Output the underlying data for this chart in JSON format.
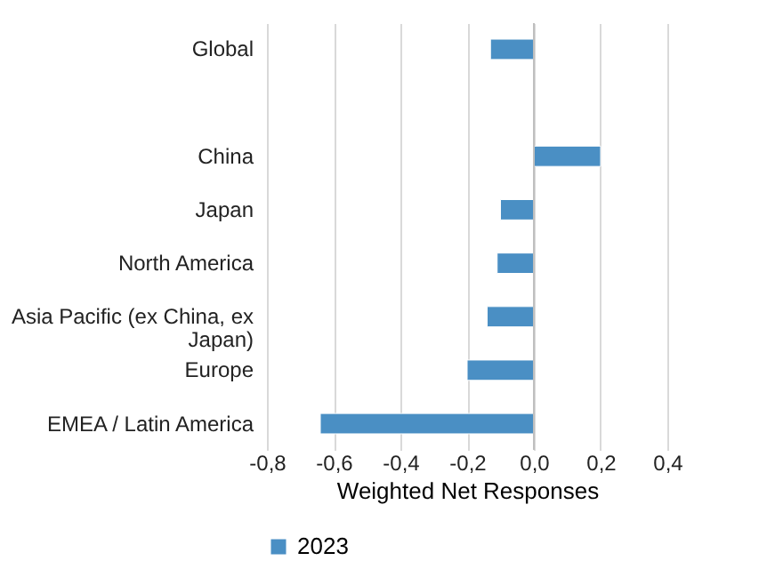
{
  "chart_data": {
    "type": "bar",
    "orientation": "horizontal",
    "categories": [
      "Global",
      null,
      "China",
      "Japan",
      "North America",
      "Asia Pacific (ex China, ex Japan)",
      "Europe",
      "EMEA / Latin America"
    ],
    "series": [
      {
        "name": "2023",
        "color": "#4a8fc4",
        "values": [
          -0.13,
          null,
          0.2,
          -0.1,
          -0.11,
          -0.14,
          -0.2,
          -0.64
        ]
      }
    ],
    "xlabel": "Weighted Net Responses",
    "xlim": [
      -0.8,
      0.4
    ],
    "xticks": [
      {
        "value": -0.8,
        "label": "-0,8"
      },
      {
        "value": -0.6,
        "label": "-0,6"
      },
      {
        "value": -0.4,
        "label": "-0,4"
      },
      {
        "value": -0.2,
        "label": "-0,2"
      },
      {
        "value": 0,
        "label": "0,0"
      },
      {
        "value": 0.2,
        "label": "0,2"
      },
      {
        "value": 0.4,
        "label": "0,4"
      }
    ],
    "grid": "x",
    "legend": "bottom"
  }
}
